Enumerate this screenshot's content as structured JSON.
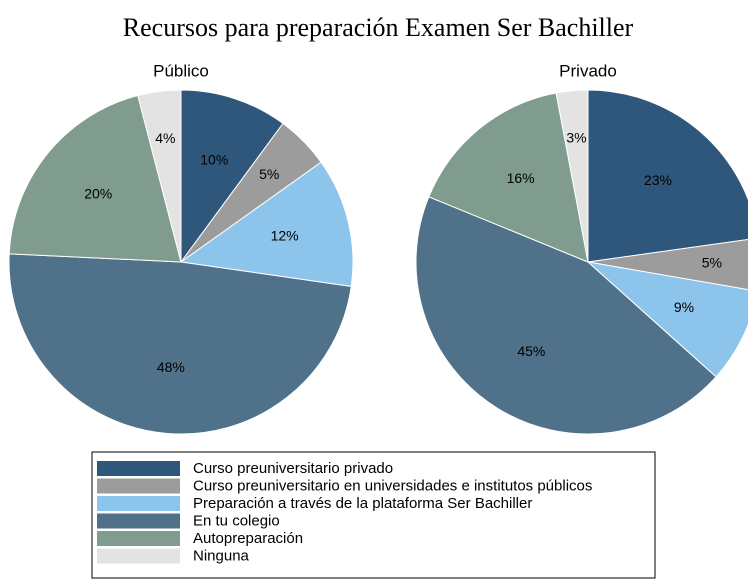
{
  "title": "Recursos para preparación Examen Ser Bachiller",
  "legend": {
    "labels": [
      "Curso preuniversitario privado",
      "Curso preuniversitario en universidades e institutos públicos",
      "Preparación a través de la plataforma Ser Bachiller",
      "En tu colegio",
      "Autopreparación",
      "Ninguna"
    ],
    "colors": [
      "#2f567b",
      "#9c9c9c",
      "#8dc4ec",
      "#4f7189",
      "#7f9c8f",
      "#e3e3e3"
    ]
  },
  "chart_data": [
    {
      "type": "pie",
      "title": "Público",
      "values": [
        10,
        5,
        12,
        48,
        20,
        4
      ],
      "value_labels": [
        "10%",
        "5%",
        "12%",
        "48%",
        "20%",
        "4%"
      ]
    },
    {
      "type": "pie",
      "title": "Privado",
      "values": [
        23,
        5,
        9,
        45,
        16,
        3
      ],
      "value_labels": [
        "23%",
        "5%",
        "9%",
        "45%",
        "16%",
        "3%"
      ]
    }
  ]
}
